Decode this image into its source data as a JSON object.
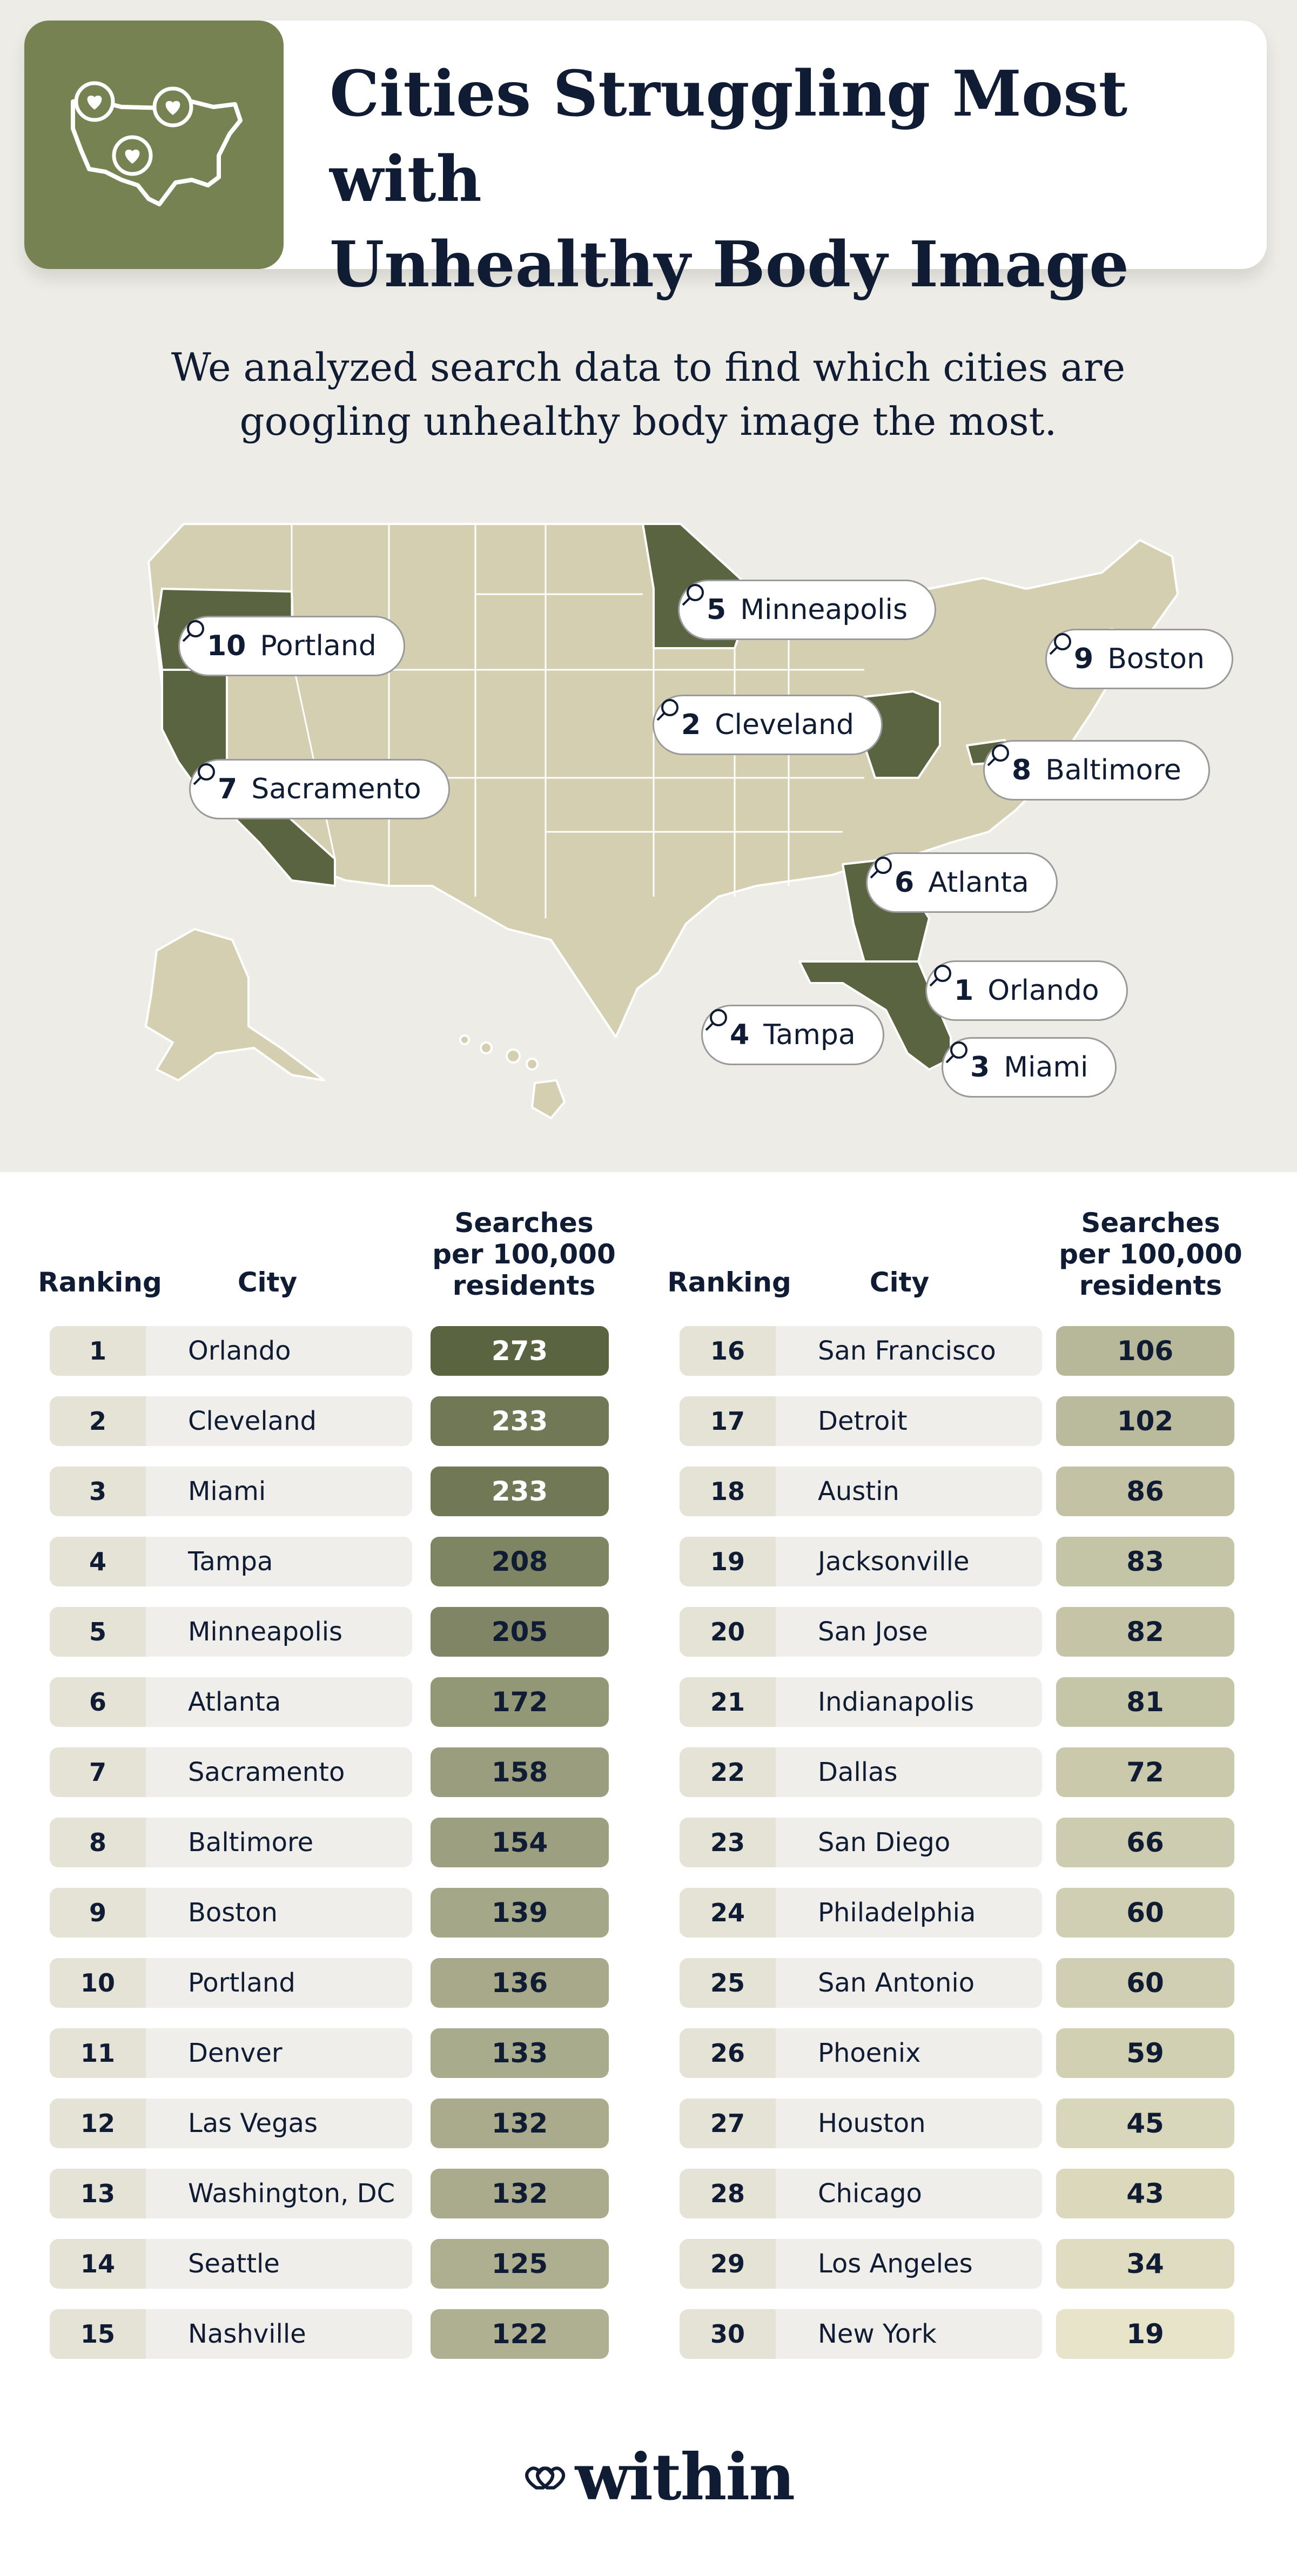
{
  "header": {
    "title_line1": "Cities Struggling Most with",
    "title_line2": "Unhealthy Body Image",
    "subtitle_line1": "We analyzed search data to find which cities are",
    "subtitle_line2": "googling unhealthy body image the most."
  },
  "map": {
    "labels": [
      {
        "rank": "10",
        "city": "Portland"
      },
      {
        "rank": "7",
        "city": "Sacramento"
      },
      {
        "rank": "5",
        "city": "Minneapolis"
      },
      {
        "rank": "2",
        "city": "Cleveland"
      },
      {
        "rank": "9",
        "city": "Boston"
      },
      {
        "rank": "8",
        "city": "Baltimore"
      },
      {
        "rank": "6",
        "city": "Atlanta"
      },
      {
        "rank": "1",
        "city": "Orlando"
      },
      {
        "rank": "4",
        "city": "Tampa"
      },
      {
        "rank": "3",
        "city": "Miami"
      }
    ],
    "highlighted_states": [
      "Oregon",
      "California",
      "Minnesota",
      "Ohio",
      "Massachusetts",
      "Maryland",
      "Georgia",
      "Florida"
    ]
  },
  "chart_data": {
    "type": "table",
    "title": "Cities Struggling Most with Unhealthy Body Image",
    "columns": [
      "Ranking",
      "City",
      "Searches per 100,000 residents"
    ],
    "column_value_lines": [
      "Searches",
      "per 100,000",
      "residents"
    ],
    "rows": [
      {
        "rank": 1,
        "city": "Orlando",
        "value": 273
      },
      {
        "rank": 2,
        "city": "Cleveland",
        "value": 233
      },
      {
        "rank": 3,
        "city": "Miami",
        "value": 233
      },
      {
        "rank": 4,
        "city": "Tampa",
        "value": 208
      },
      {
        "rank": 5,
        "city": "Minneapolis",
        "value": 205
      },
      {
        "rank": 6,
        "city": "Atlanta",
        "value": 172
      },
      {
        "rank": 7,
        "city": "Sacramento",
        "value": 158
      },
      {
        "rank": 8,
        "city": "Baltimore",
        "value": 154
      },
      {
        "rank": 9,
        "city": "Boston",
        "value": 139
      },
      {
        "rank": 10,
        "city": "Portland",
        "value": 136
      },
      {
        "rank": 11,
        "city": "Denver",
        "value": 133
      },
      {
        "rank": 12,
        "city": "Las Vegas",
        "value": 132
      },
      {
        "rank": 13,
        "city": "Washington, DC",
        "value": 132
      },
      {
        "rank": 14,
        "city": "Seattle",
        "value": 125
      },
      {
        "rank": 15,
        "city": "Nashville",
        "value": 122
      },
      {
        "rank": 16,
        "city": "San Francisco",
        "value": 106
      },
      {
        "rank": 17,
        "city": "Detroit",
        "value": 102
      },
      {
        "rank": 18,
        "city": "Austin",
        "value": 86
      },
      {
        "rank": 19,
        "city": "Jacksonville",
        "value": 83
      },
      {
        "rank": 20,
        "city": "San Jose",
        "value": 82
      },
      {
        "rank": 21,
        "city": "Indianapolis",
        "value": 81
      },
      {
        "rank": 22,
        "city": "Dallas",
        "value": 72
      },
      {
        "rank": 23,
        "city": "San Diego",
        "value": 66
      },
      {
        "rank": 24,
        "city": "Philadelphia",
        "value": 60
      },
      {
        "rank": 25,
        "city": "San Antonio",
        "value": 60
      },
      {
        "rank": 26,
        "city": "Phoenix",
        "value": 59
      },
      {
        "rank": 27,
        "city": "Houston",
        "value": 45
      },
      {
        "rank": 28,
        "city": "Chicago",
        "value": 43
      },
      {
        "rank": 29,
        "city": "Los Angeles",
        "value": 34
      },
      {
        "rank": 30,
        "city": "New York",
        "value": 19
      }
    ]
  },
  "colors": {
    "dark_green": "#5a6440",
    "pale_green": "#e8e4c9",
    "state_base": "#d4cfb1",
    "navy": "#0f1c33"
  },
  "footer": {
    "brand": "within"
  }
}
